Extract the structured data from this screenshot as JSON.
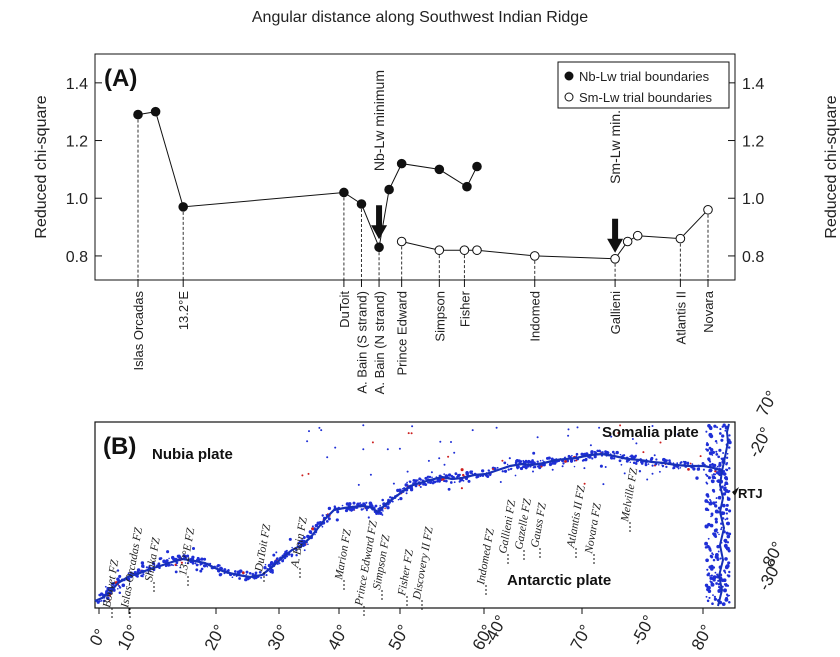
{
  "title": "Angular distance along Southwest Indian Ridge",
  "panel_a": {
    "label": "(A)",
    "ylabel_left": "Reduced chi-square",
    "ylabel_right": "Reduced chi-square",
    "yticks": [
      "0.8",
      "1.0",
      "1.2",
      "1.4"
    ],
    "annotation_nb": "Nb-Lw minimum",
    "annotation_sm": "Sm-Lw min.",
    "legend": {
      "nb": "Nb-Lw trial boundaries",
      "sm": "Sm-Lw trial boundaries"
    }
  },
  "panel_b": {
    "label": "(B)",
    "plates": {
      "nubia": "Nubia plate",
      "somalia": "Somalia plate",
      "antarctic": "Antarctic plate",
      "rtj": "RTJ"
    },
    "fracture_zones": [
      "Bouvet FZ",
      "Islas-Orcadas FZ",
      "Shaka FZ",
      "13.2°E FZ",
      "DuToit FZ",
      "A. Bain FZ",
      "Marion FZ",
      "Prince Edward FZ",
      "Simpson FZ",
      "Fisher FZ",
      "Discovery II FZ",
      "Indomed FZ",
      "Gallieni FZ",
      "Gazelle FZ",
      "Gauss FZ",
      "Atlantis II FZ",
      "Novara FZ",
      "Melville FZ"
    ],
    "lon_ticks": [
      "0°",
      "10°",
      "20°",
      "30°",
      "40°",
      "50°",
      "60°",
      "70°",
      "80°"
    ],
    "lat_ticks": [
      "-20°",
      "-30°",
      "-40°",
      "-50°"
    ],
    "right_ticks": [
      "70°",
      "80°"
    ]
  },
  "chart_data": {
    "type": "scatter",
    "title": "Angular distance along Southwest Indian Ridge",
    "ylabel": "Reduced chi-square",
    "ylim": [
      0.72,
      1.5
    ],
    "categories": [
      "Islas Orcadas",
      "13.2°E",
      "DuToit",
      "A. Bain (S strand)",
      "A. Bain (N strand)",
      "Prince Edward",
      "Simpson",
      "Fisher",
      "Indomed",
      "Gallieni",
      "Atlantis II",
      "Novara"
    ],
    "series": [
      {
        "name": "Nb-Lw trial boundaries",
        "marker": "filled",
        "points": [
          {
            "x": 0.0,
            "y": 1.29
          },
          {
            "x": 0.07,
            "y": 1.3
          },
          {
            "x": 0.18,
            "y": 0.97
          },
          {
            "x": 0.82,
            "y": 1.02
          },
          {
            "x": 0.89,
            "y": 0.98
          },
          {
            "x": 0.96,
            "y": 0.83
          },
          {
            "x": 1.0,
            "y": 1.03
          },
          {
            "x": 1.05,
            "y": 1.12
          },
          {
            "x": 1.2,
            "y": 1.1
          },
          {
            "x": 1.31,
            "y": 1.04
          },
          {
            "x": 1.35,
            "y": 1.11
          }
        ]
      },
      {
        "name": "Sm-Lw trial boundaries",
        "marker": "open",
        "points": [
          {
            "x": 1.05,
            "y": 0.85
          },
          {
            "x": 1.2,
            "y": 0.82
          },
          {
            "x": 1.3,
            "y": 0.82
          },
          {
            "x": 1.35,
            "y": 0.82
          },
          {
            "x": 1.58,
            "y": 0.8
          },
          {
            "x": 1.9,
            "y": 0.79
          },
          {
            "x": 1.95,
            "y": 0.85
          },
          {
            "x": 1.99,
            "y": 0.87
          },
          {
            "x": 2.16,
            "y": 0.86
          },
          {
            "x": 2.27,
            "y": 0.96
          }
        ]
      }
    ],
    "boundaries": [
      {
        "name": "Islas Orcadas",
        "x": 0.0,
        "y": 1.29
      },
      {
        "name": "13.2°E",
        "x": 0.18,
        "y": 0.97
      },
      {
        "name": "DuToit",
        "x": 0.82,
        "y": 1.02
      },
      {
        "name": "A. Bain (S strand)",
        "x": 0.89,
        "y": 0.98
      },
      {
        "name": "A. Bain (N strand)",
        "x": 0.96,
        "y": 0.83
      },
      {
        "name": "Prince Edward",
        "x": 1.05,
        "y": 0.85
      },
      {
        "name": "Simpson",
        "x": 1.2,
        "y": 0.82
      },
      {
        "name": "Fisher",
        "x": 1.3,
        "y": 0.82
      },
      {
        "name": "Indomed",
        "x": 1.58,
        "y": 0.8
      },
      {
        "name": "Gallieni",
        "x": 1.9,
        "y": 0.79
      },
      {
        "name": "Atlantis II",
        "x": 2.16,
        "y": 0.86
      },
      {
        "name": "Novara",
        "x": 2.27,
        "y": 0.96
      }
    ],
    "colors": {
      "seismicity_main": "#1f2fd6",
      "seismicity_alt": "#cc1f1f",
      "line": "#111111"
    }
  }
}
